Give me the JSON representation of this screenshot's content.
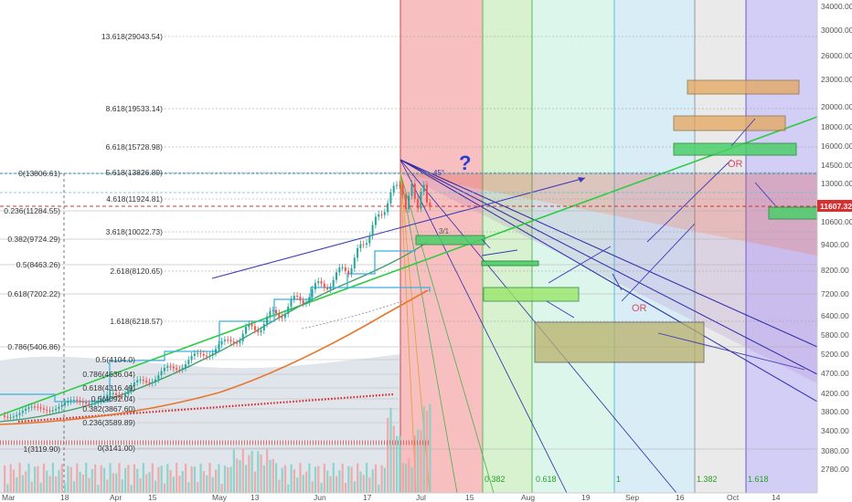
{
  "chart_data": {
    "type": "candlestick",
    "y_axis_ticks": [
      "34000.00",
      "30000.00",
      "26000.00",
      "23000.00",
      "20000.00",
      "18000.00",
      "16000.00",
      "14500.00",
      "13000.00",
      "11607.32",
      "10600.00",
      "9400.00",
      "8200.00",
      "7200.00",
      "6400.00",
      "5800.00",
      "5200.00",
      "4700.00",
      "4200.00",
      "3800.00",
      "3400.00",
      "3080.00",
      "2780.00"
    ],
    "x_axis_ticks": [
      "Mar",
      "18",
      "Apr",
      "15",
      "May",
      "13",
      "Jun",
      "17",
      "Jul",
      "15",
      "Aug",
      "19",
      "Sep",
      "16",
      "Oct",
      "14"
    ],
    "current_price": "11607.32",
    "fib_extension_labels": [
      "13.618(29043.54)",
      "8.618(19533.14)",
      "6.618(15728.98)",
      "5.618(13826.89)",
      "4.618(11924.81)",
      "3.618(10022.73)",
      "2.618(8120.65)",
      "1.618(6218.57)"
    ],
    "fib_retracement_labels": [
      "0(13806.61)",
      "0.236(11284.55)",
      "0.382(9724.29)",
      "0.5(8463.26)",
      "0.618(7202.22)",
      "0.786(5406.86)",
      "1(3119.90)"
    ],
    "inner_fib_labels": [
      "0.5(4104.0)",
      "0.786(4636.04)",
      "0.618(4316.49)",
      "0.5(4092.04)",
      "0.382(3867.60)",
      "0.236(3589.89)",
      "0(3141.00)"
    ],
    "fib_time_zones": [
      "0.382",
      "0.618",
      "1",
      "1.382",
      "1.618"
    ],
    "annotations": {
      "question": "?",
      "or_1": "OR",
      "or_2": "OR",
      "fan_angle": "45°",
      "fan_ratio": "3/1"
    },
    "colors": {
      "ascending_channel": "#2ecc40",
      "wedge_fill": "#d9534f",
      "current_price_line": "#d63030",
      "wma_orange": "#e8772e",
      "ma_cyan": "#3bb0e0",
      "ma_green": "#3d9e6a"
    }
  }
}
